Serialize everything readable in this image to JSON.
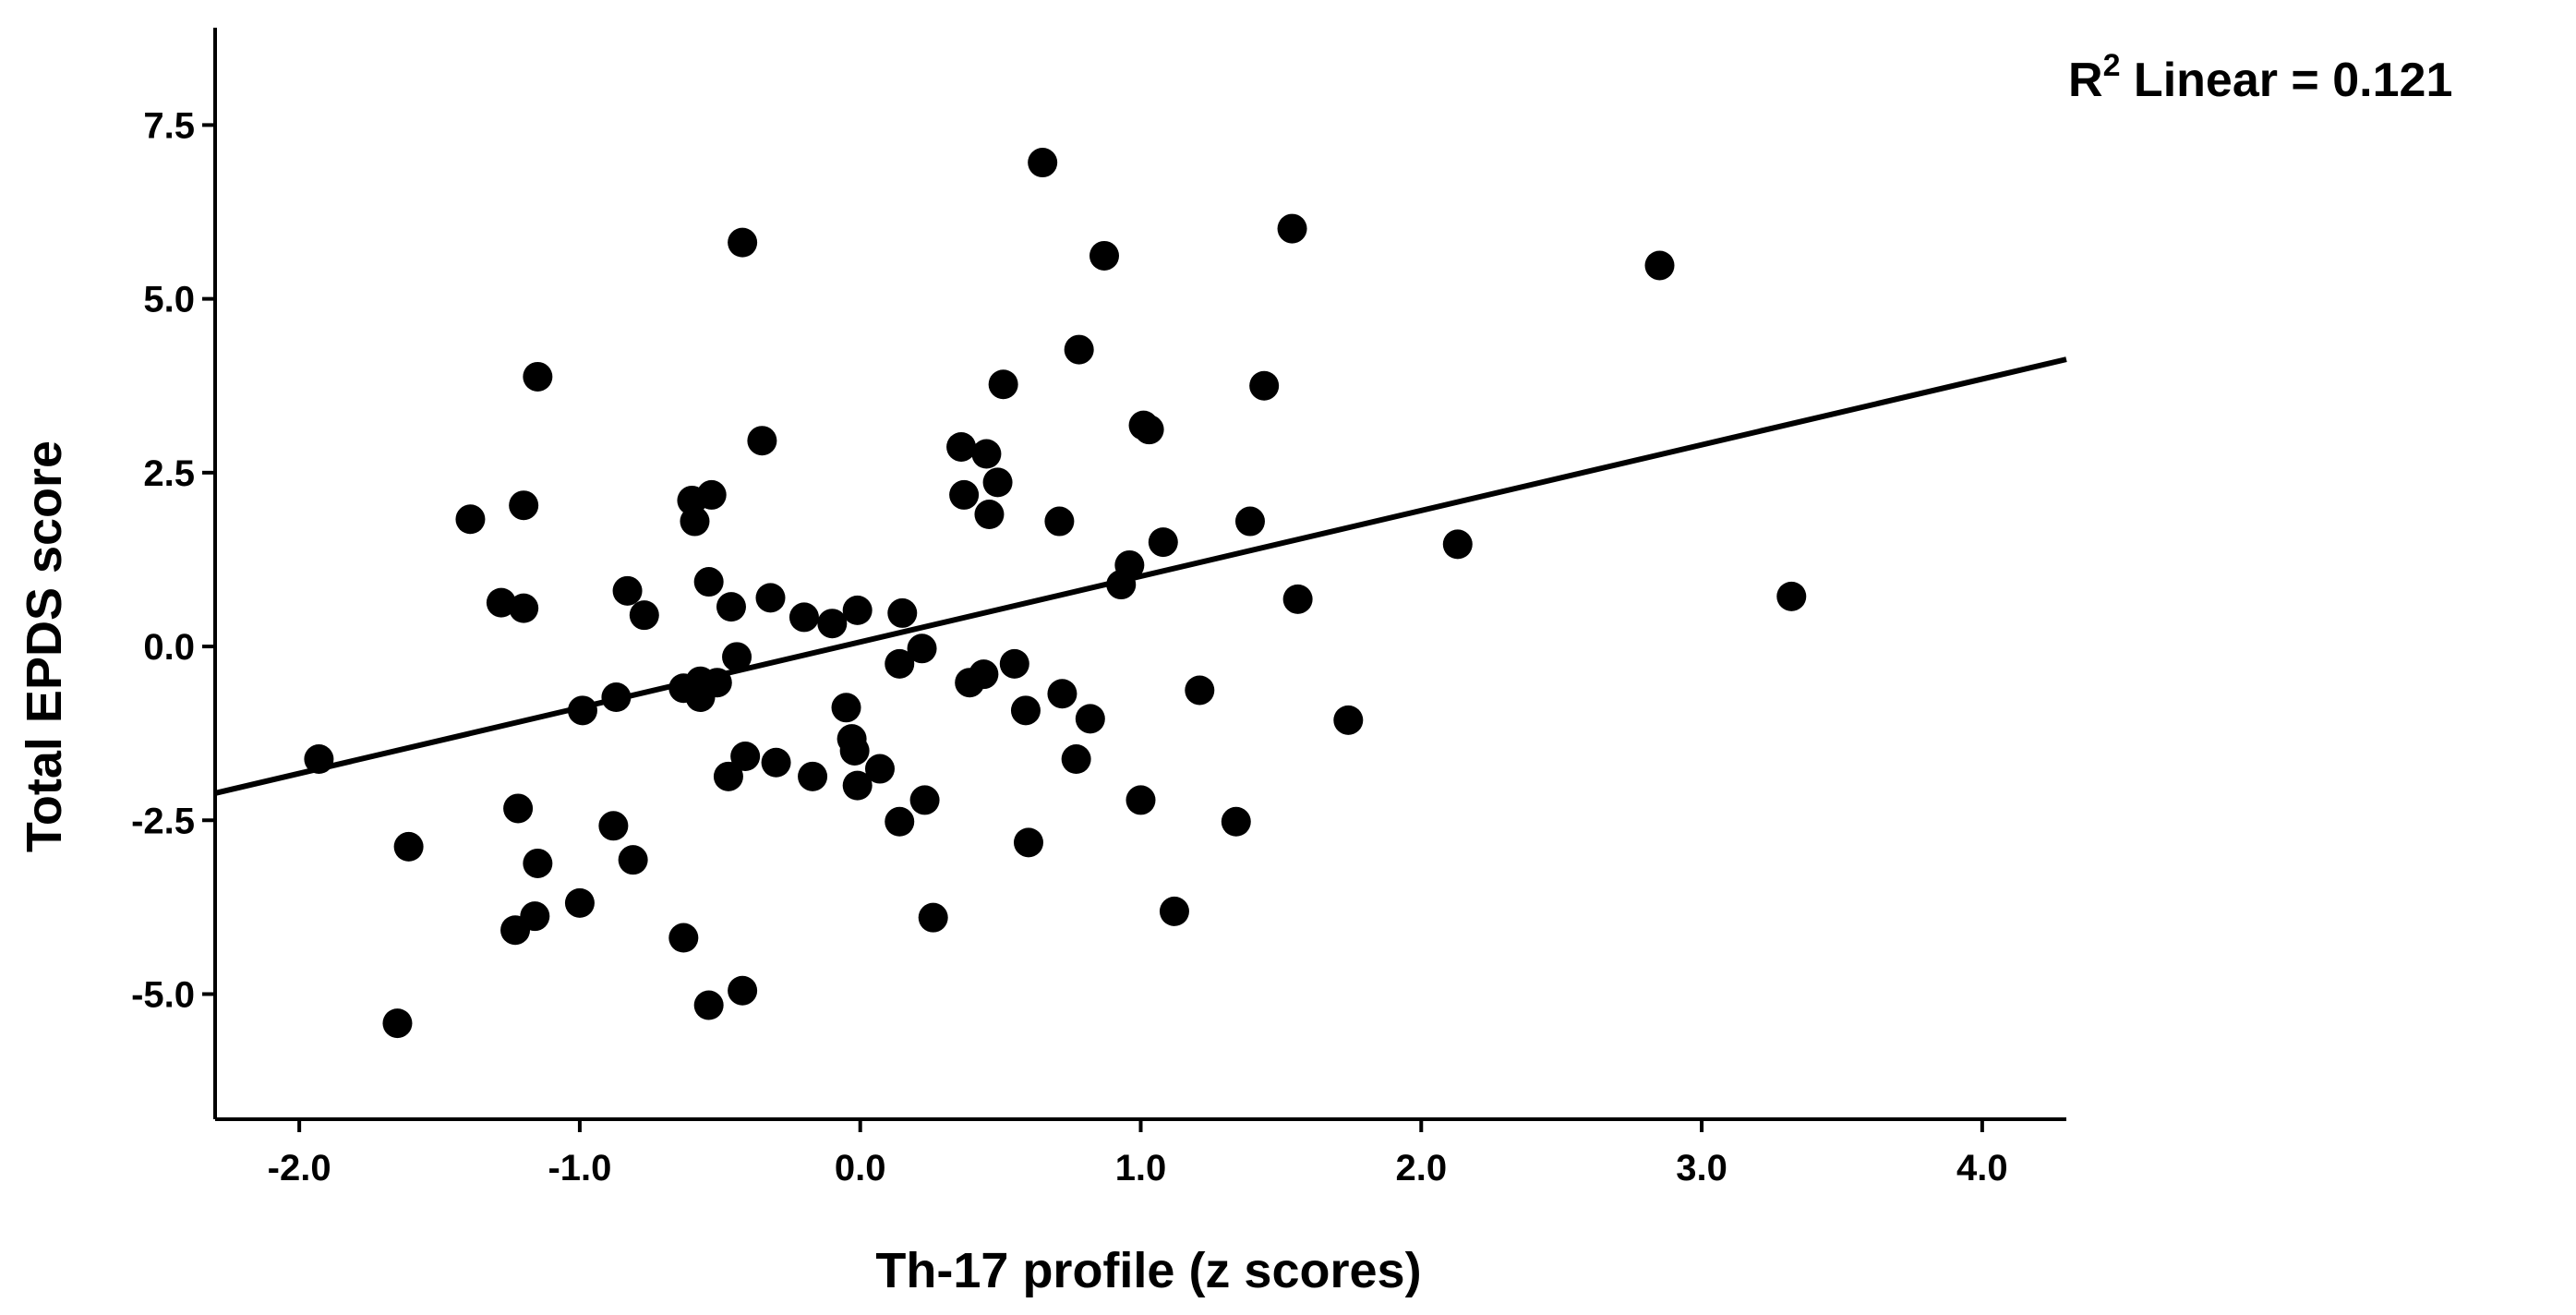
{
  "chart_data": {
    "type": "scatter",
    "title": "",
    "xlabel": "Th-17 profile (z scores)",
    "ylabel": "Total EPDS score",
    "xlim": [
      -2.3,
      4.3
    ],
    "ylim": [
      -6.8,
      8.9
    ],
    "x_ticks": [
      -2.0,
      -1.0,
      0.0,
      1.0,
      2.0,
      3.0,
      4.0
    ],
    "x_tick_labels": [
      "-2.0",
      "-1.0",
      "0.0",
      "1.0",
      "2.0",
      "3.0",
      "4.0"
    ],
    "y_ticks": [
      7.5,
      5.0,
      2.5,
      0.0,
      -2.5,
      -5.0
    ],
    "y_tick_labels": [
      "7.5",
      "5.0",
      "2.5",
      "0.0",
      "-2.5",
      "-5.0"
    ],
    "grid": false,
    "annotation": {
      "prefix": "R",
      "superscript": "2",
      "text": " Linear = 0.121"
    },
    "fit_line": {
      "type": "linear",
      "points": [
        [
          -2.3,
          -2.11
        ],
        [
          4.3,
          4.13
        ]
      ]
    },
    "series": [
      {
        "color": "#000000",
        "points": [
          [
            -1.93,
            -1.62
          ],
          [
            -1.65,
            -5.42
          ],
          [
            -1.61,
            -2.88
          ],
          [
            -1.39,
            1.83
          ],
          [
            -1.28,
            0.63
          ],
          [
            -1.23,
            -4.08
          ],
          [
            -1.22,
            -2.33
          ],
          [
            -1.2,
            0.55
          ],
          [
            -1.2,
            2.03
          ],
          [
            -1.16,
            -3.88
          ],
          [
            -1.15,
            -3.12
          ],
          [
            -1.15,
            3.88
          ],
          [
            -1.0,
            -3.69
          ],
          [
            -0.99,
            -0.92
          ],
          [
            -0.87,
            -0.73
          ],
          [
            -0.88,
            -2.58
          ],
          [
            -0.81,
            -3.07
          ],
          [
            -0.83,
            0.8
          ],
          [
            -0.77,
            0.45
          ],
          [
            -0.63,
            -0.6
          ],
          [
            -0.63,
            -4.19
          ],
          [
            -0.6,
            2.1
          ],
          [
            -0.59,
            1.8
          ],
          [
            -0.57,
            -0.5
          ],
          [
            -0.57,
            -0.73
          ],
          [
            -0.54,
            -5.16
          ],
          [
            -0.54,
            0.93
          ],
          [
            -0.53,
            2.18
          ],
          [
            -0.51,
            -0.52
          ],
          [
            -0.47,
            -1.87
          ],
          [
            -0.46,
            0.57
          ],
          [
            -0.44,
            -0.15
          ],
          [
            -0.42,
            5.81
          ],
          [
            -0.42,
            -4.95
          ],
          [
            -0.41,
            -1.58
          ],
          [
            -0.35,
            2.96
          ],
          [
            -0.32,
            0.7
          ],
          [
            -0.3,
            -1.67
          ],
          [
            -0.2,
            0.42
          ],
          [
            -0.17,
            -1.87
          ],
          [
            -0.1,
            0.33
          ],
          [
            -0.05,
            -0.88
          ],
          [
            -0.03,
            -1.33
          ],
          [
            -0.02,
            -1.5
          ],
          [
            -0.01,
            -2.0
          ],
          [
            -0.01,
            0.52
          ],
          [
            0.07,
            -1.76
          ],
          [
            0.14,
            -2.52
          ],
          [
            0.14,
            -0.25
          ],
          [
            0.15,
            0.48
          ],
          [
            0.22,
            -0.03
          ],
          [
            0.23,
            -2.21
          ],
          [
            0.26,
            -3.9
          ],
          [
            0.36,
            2.87
          ],
          [
            0.37,
            2.18
          ],
          [
            0.39,
            -0.52
          ],
          [
            0.44,
            -0.4
          ],
          [
            0.45,
            2.77
          ],
          [
            0.46,
            1.9
          ],
          [
            0.49,
            2.36
          ],
          [
            0.51,
            3.77
          ],
          [
            0.55,
            -0.25
          ],
          [
            0.59,
            -0.92
          ],
          [
            0.6,
            -2.82
          ],
          [
            0.65,
            6.96
          ],
          [
            0.71,
            1.8
          ],
          [
            0.72,
            -0.68
          ],
          [
            0.77,
            -1.62
          ],
          [
            0.78,
            4.27
          ],
          [
            0.82,
            -1.04
          ],
          [
            0.87,
            5.62
          ],
          [
            0.93,
            0.89
          ],
          [
            0.96,
            1.17
          ],
          [
            1.0,
            -2.21
          ],
          [
            1.01,
            3.18
          ],
          [
            1.03,
            3.12
          ],
          [
            1.08,
            1.5
          ],
          [
            1.12,
            -3.81
          ],
          [
            1.21,
            -0.63
          ],
          [
            1.34,
            -2.52
          ],
          [
            1.39,
            1.8
          ],
          [
            1.44,
            3.75
          ],
          [
            1.54,
            6.01
          ],
          [
            1.56,
            0.68
          ],
          [
            1.74,
            -1.06
          ],
          [
            2.13,
            1.47
          ],
          [
            2.85,
            5.48
          ],
          [
            3.32,
            0.72
          ]
        ]
      }
    ]
  }
}
